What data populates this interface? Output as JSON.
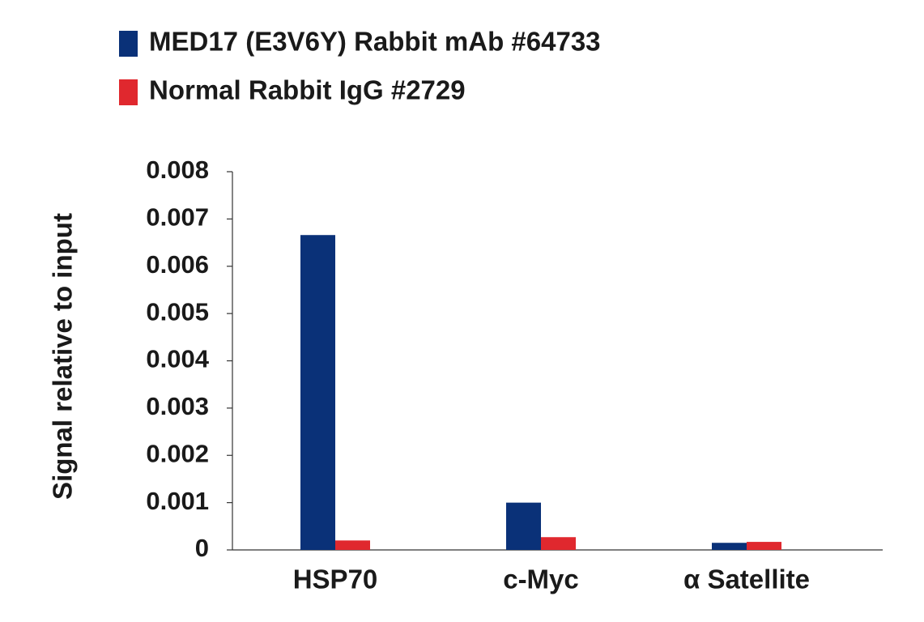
{
  "chart_data": {
    "type": "bar",
    "ylabel": "Signal relative to input",
    "categories": [
      "HSP70",
      "c-Myc",
      "α Satellite"
    ],
    "series": [
      {
        "name": "MED17 (E3V6Y) Rabbit mAb #64733",
        "color": "#0a3178",
        "values": [
          0.00666,
          0.001,
          0.00015
        ]
      },
      {
        "name": "Normal Rabbit IgG #2729",
        "color": "#e0282e",
        "values": [
          0.0002,
          0.00027,
          0.00017
        ]
      }
    ],
    "ylim": [
      0,
      0.008
    ],
    "yticks": [
      0,
      0.001,
      0.002,
      0.003,
      0.004,
      0.005,
      0.006,
      0.007,
      0.008
    ],
    "legend": "top-left"
  }
}
